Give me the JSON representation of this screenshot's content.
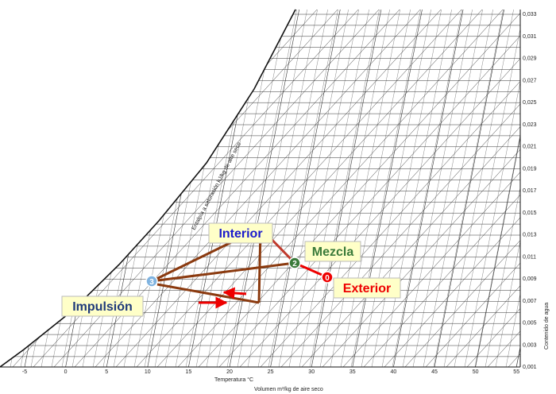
{
  "chart": {
    "x_title": "Temperatura °C",
    "bottom_title": "Volumen m³/kg de aire seco",
    "y_title": "Contenido de agua",
    "curve_title": "Entalpía a saturación kJ/kg de aire seco",
    "x_ticks": [
      "-5",
      "0",
      "5",
      "10",
      "15",
      "20",
      "25",
      "30",
      "35",
      "40",
      "45",
      "50",
      "55"
    ],
    "y_ticks": [
      "0,001",
      "0,003",
      "0,005",
      "0,007",
      "0,009",
      "0,011",
      "0,013",
      "0,015",
      "0,017",
      "0,019",
      "0,021",
      "0,023",
      "0,025",
      "0,027",
      "0,029",
      "0,031",
      "0,033"
    ]
  },
  "points": [
    {
      "id": "1",
      "label": "Interior"
    },
    {
      "id": "2",
      "label": "Mezcla"
    },
    {
      "id": "0",
      "label": "Exterior"
    },
    {
      "id": "3",
      "label": "Impulsión"
    }
  ]
}
